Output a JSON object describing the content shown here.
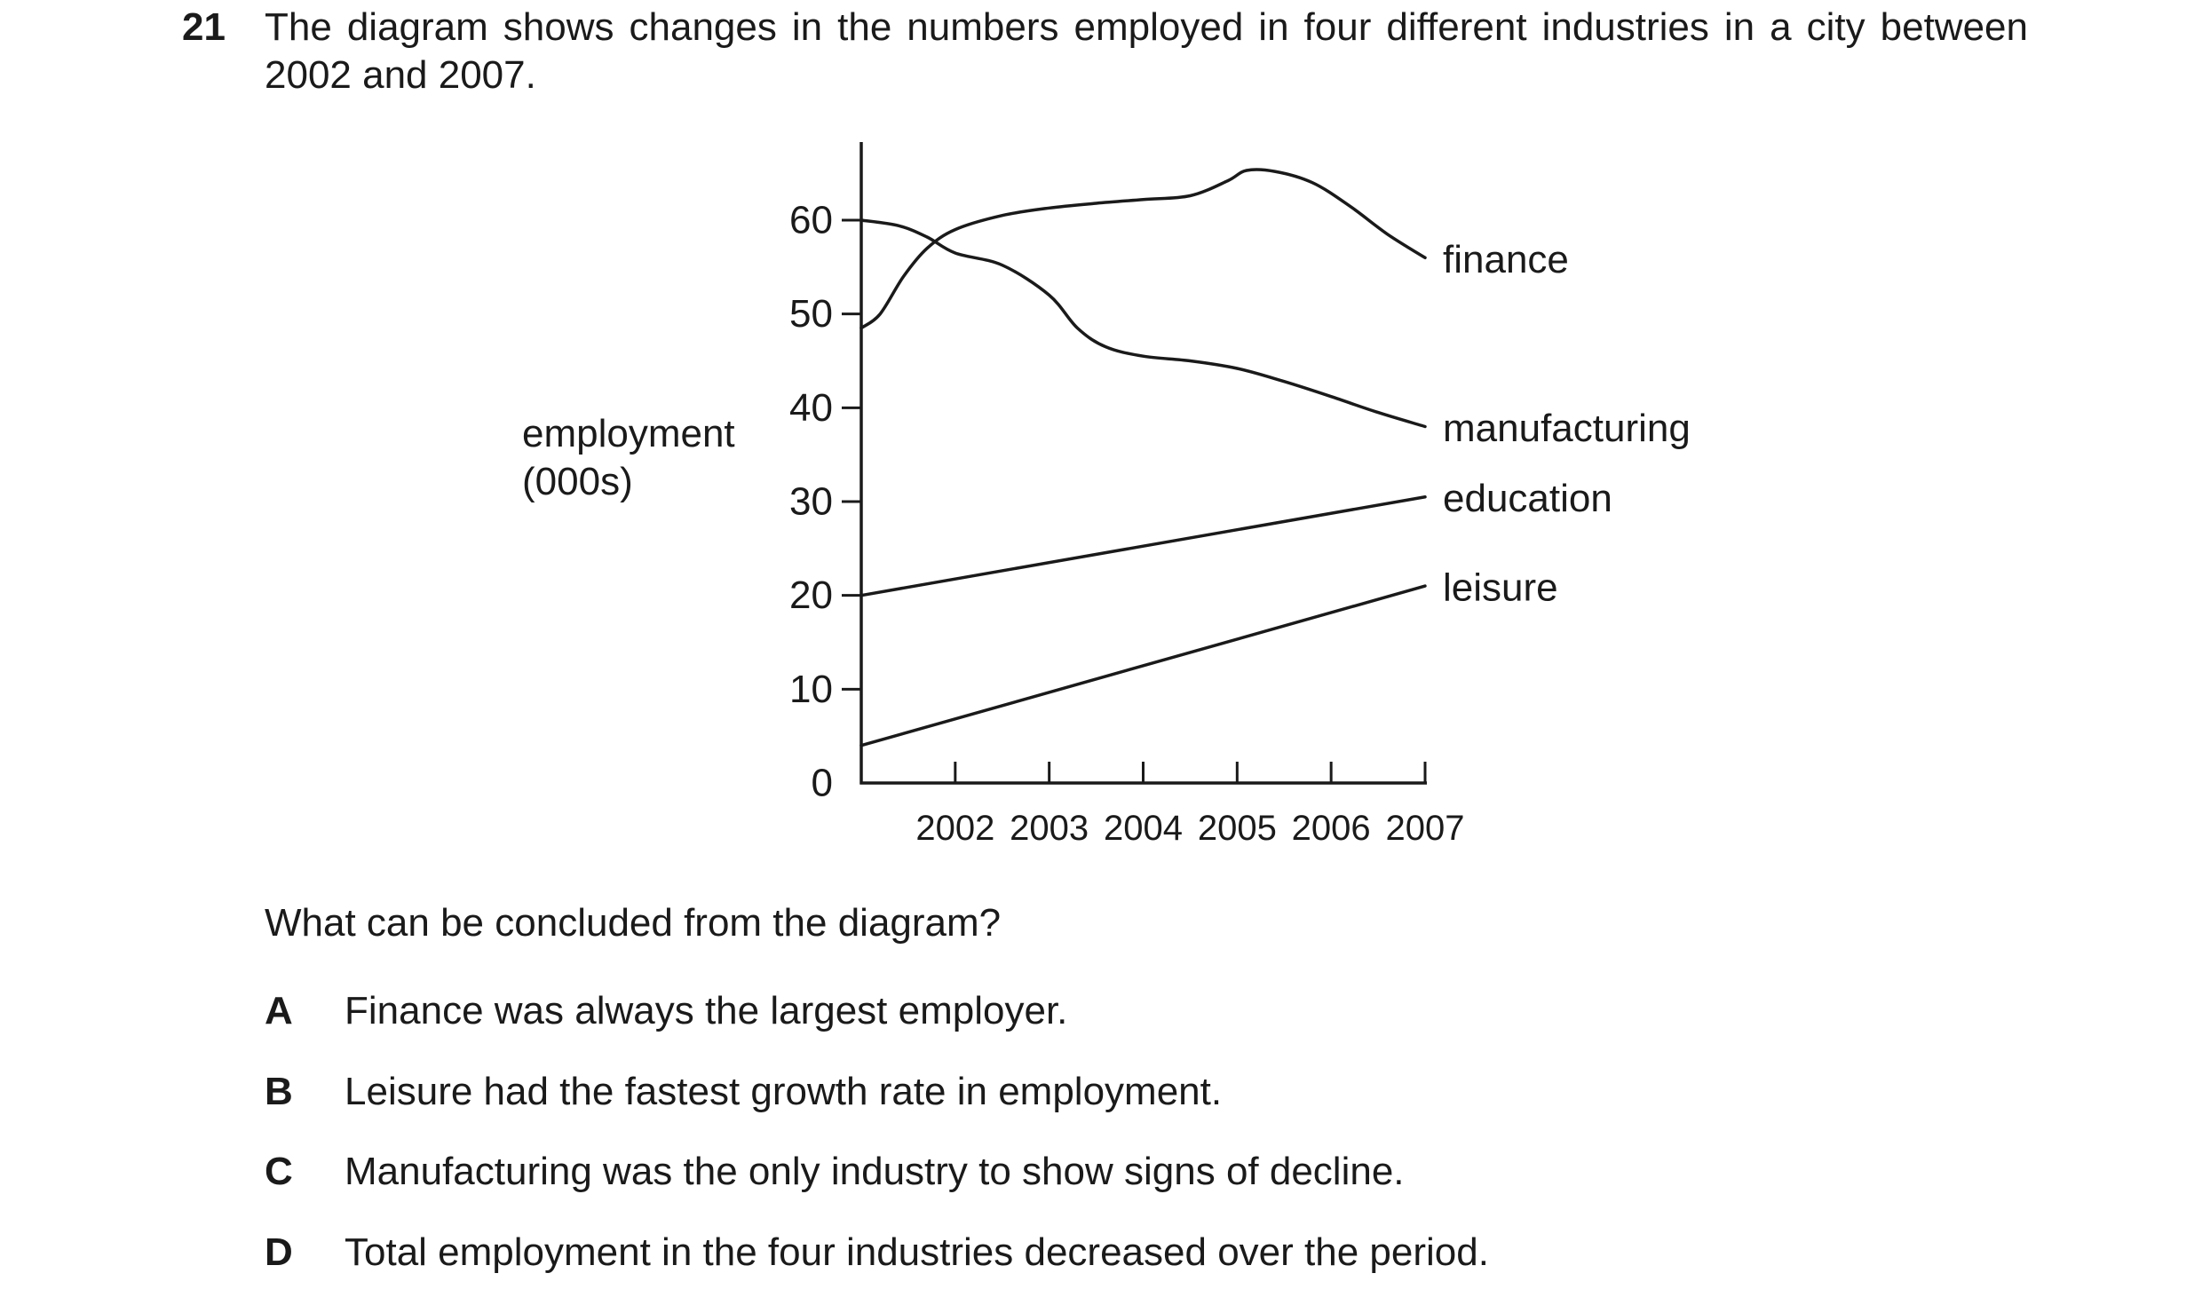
{
  "question": {
    "number": "21",
    "stem": "The diagram shows changes in the numbers employed in four different industries in a city between 2002 and 2007.",
    "prompt": "What can be concluded from the diagram?",
    "options": [
      {
        "letter": "A",
        "text": "Finance was always the largest employer."
      },
      {
        "letter": "B",
        "text": "Leisure had the fastest growth rate in employment."
      },
      {
        "letter": "C",
        "text": "Manufacturing was the only industry to show signs of decline."
      },
      {
        "letter": "D",
        "text": "Total employment in the four industries decreased over the period."
      }
    ]
  },
  "chart_data": {
    "type": "line",
    "ylabel": "employment (000s)",
    "ylabel_lines": [
      "employment",
      "(000s)"
    ],
    "xlabel": "",
    "ylim": [
      0,
      60
    ],
    "yticks": [
      0,
      10,
      20,
      30,
      40,
      50,
      60
    ],
    "xlim": [
      2001,
      2007
    ],
    "xticks": [
      2002,
      2003,
      2004,
      2005,
      2006,
      2007
    ],
    "grid": false,
    "legend": "labels at line ends (right)",
    "line_color": "#1a1a1a",
    "series": [
      {
        "name": "finance",
        "x": [
          2001,
          2001.2,
          2001.45,
          2001.7,
          2002,
          2002.5,
          2003,
          2003.5,
          2004,
          2004.5,
          2004.9,
          2005.1,
          2005.4,
          2005.8,
          2006.2,
          2006.6,
          2007
        ],
        "y": [
          48.5,
          50,
          54,
          57,
          59,
          60.5,
          61.3,
          61.8,
          62.2,
          62.6,
          64.2,
          65.3,
          65.2,
          64,
          61.5,
          58.5,
          56
        ]
      },
      {
        "name": "manufacturing",
        "x": [
          2001,
          2001.4,
          2001.7,
          2002,
          2002.5,
          2003,
          2003.3,
          2003.6,
          2004,
          2004.5,
          2005,
          2005.5,
          2006,
          2006.5,
          2007
        ],
        "y": [
          60,
          59.4,
          58.2,
          56.5,
          55.2,
          52,
          48.5,
          46.5,
          45.5,
          45,
          44.2,
          42.8,
          41.2,
          39.5,
          38
        ]
      },
      {
        "name": "education",
        "x": [
          2001,
          2007
        ],
        "y": [
          20,
          30.5
        ]
      },
      {
        "name": "leisure",
        "x": [
          2001,
          2007
        ],
        "y": [
          4,
          21
        ]
      }
    ]
  }
}
